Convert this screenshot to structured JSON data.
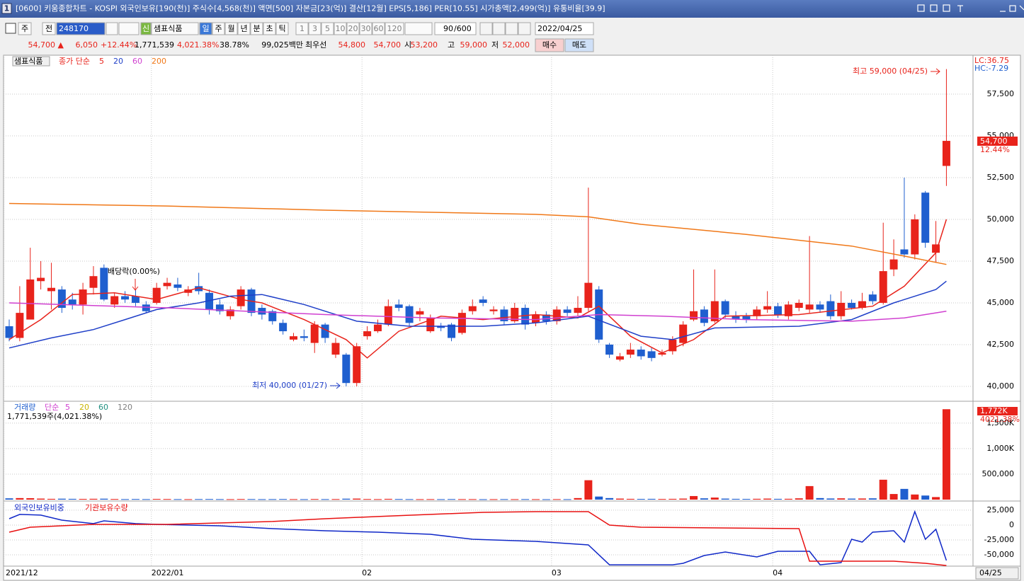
{
  "window": {
    "badge": "1",
    "title": "[0600] 키움종합차트 - KOSPI 외국인보유[190(천)] 주식수[4,568(천)] 액면[500] 자본금[23(억)] 결산[12월] EPS[5,186] PER[10.55] 시가총액[2,499(억)] 유통비율[39.9]"
  },
  "toolbar": {
    "period": "주",
    "scope": "전",
    "code": "248170",
    "badge": "신",
    "name": "샘표식품",
    "intervals": [
      "일",
      "주",
      "월",
      "년",
      "분",
      "초",
      "틱",
      "1",
      "3",
      "5",
      "10",
      "20",
      "30",
      "60",
      "120"
    ],
    "count": "90",
    "total": "/600",
    "date": "2022/04/25"
  },
  "quote": {
    "price": "54,700 ▲",
    "change": "6,050",
    "rate": "+12.44%",
    "volume": "1,771,539",
    "volume_rate": "4,021.38%",
    "turnover": "38.78%",
    "amount": "99,025백만",
    "best": "최우선",
    "ask": "54,800",
    "bid": "54,700",
    "open_label": "시",
    "open": "53,200",
    "high_label": "고",
    "high": "59,000",
    "low_label": "저",
    "low": "52,000",
    "buy": "매수",
    "sell": "매도"
  },
  "x_axis": {
    "labels": [
      {
        "label": "2021/12",
        "index": 0
      },
      {
        "label": "2022/01",
        "index": 14
      },
      {
        "label": "02",
        "index": 34
      },
      {
        "label": "03",
        "index": 52
      },
      {
        "label": "04",
        "index": 73
      }
    ],
    "last": "04/25"
  },
  "chart_data": [
    {
      "type": "candlestick",
      "title": "샘표식품",
      "legend_title": "종가 단순",
      "up_color": "#e8231b",
      "down_color": "#1f5fcf",
      "candles": {
        "open": [
          43600,
          42900,
          44000,
          46300,
          45700,
          45800,
          45200,
          44900,
          45900,
          47100,
          44900,
          45400,
          45400,
          44900,
          45000,
          46000,
          46100,
          45600,
          46000,
          45600,
          44900,
          44200,
          44800,
          45800,
          44700,
          44500,
          43800,
          42800,
          43000,
          42600,
          43700,
          41900,
          41900,
          40200,
          43000,
          43300,
          43700,
          44900,
          44800,
          44300,
          43300,
          43600,
          43700,
          43200,
          44500,
          45200,
          44500,
          44600,
          43900,
          44700,
          43800,
          44300,
          43900,
          44600,
          44400,
          44700,
          45800,
          42500,
          41600,
          41900,
          42200,
          42100,
          41900,
          42100,
          42600,
          44000,
          44600,
          43900,
          45100,
          44200,
          44200,
          44200,
          44600,
          44800,
          44200,
          44700,
          44600,
          44900,
          45100,
          44200,
          45000,
          44700,
          45500,
          45000,
          47000,
          48200,
          47900,
          51600,
          48000,
          53200
        ],
        "high": [
          44000,
          46000,
          48300,
          47500,
          47400,
          46000,
          45600,
          46200,
          47200,
          47300,
          45600,
          45700,
          45800,
          45100,
          46200,
          46500,
          46500,
          46000,
          46800,
          45800,
          45200,
          44800,
          46000,
          45900,
          44900,
          44600,
          44000,
          43200,
          43400,
          43900,
          43800,
          42900,
          42000,
          42600,
          43600,
          44000,
          45200,
          45200,
          44900,
          44700,
          44300,
          43800,
          43800,
          44600,
          45200,
          45400,
          44800,
          44800,
          45000,
          44900,
          44500,
          44500,
          44800,
          44800,
          45400,
          51900,
          46000,
          42600,
          42000,
          42600,
          42400,
          42300,
          42200,
          43000,
          43900,
          47000,
          44800,
          47000,
          45200,
          44500,
          44400,
          44800,
          45700,
          45000,
          45100,
          45200,
          49000,
          45100,
          45500,
          45700,
          45200,
          45600,
          45700,
          49800,
          48800,
          52500,
          50300,
          51700,
          49900,
          59000
        ],
        "low": [
          42700,
          42700,
          44000,
          45800,
          44600,
          44400,
          44600,
          44300,
          45500,
          45100,
          44700,
          45000,
          44800,
          44400,
          44900,
          45800,
          45700,
          45400,
          45500,
          44300,
          44300,
          44000,
          44600,
          44200,
          44000,
          43700,
          43100,
          42700,
          42700,
          42000,
          42600,
          41700,
          40000,
          40000,
          42800,
          43200,
          43600,
          44500,
          43600,
          43900,
          43200,
          43300,
          42700,
          43100,
          44300,
          44800,
          44300,
          43700,
          43800,
          43400,
          43600,
          43700,
          43700,
          44200,
          44200,
          44500,
          42600,
          41700,
          41500,
          41700,
          41600,
          41500,
          41800,
          41900,
          42400,
          43900,
          43600,
          43800,
          44100,
          43800,
          43800,
          44000,
          44400,
          44100,
          44000,
          44500,
          44400,
          44400,
          44000,
          44000,
          44600,
          44600,
          44900,
          44900,
          46600,
          47700,
          47600,
          48300,
          47400,
          52000
        ],
        "close": [
          42900,
          44400,
          46400,
          46500,
          45900,
          44700,
          44900,
          45800,
          46600,
          45200,
          45400,
          45200,
          45000,
          44500,
          45900,
          46200,
          45900,
          45800,
          45700,
          44600,
          44500,
          44600,
          45800,
          44400,
          44300,
          43900,
          43300,
          43000,
          42900,
          43700,
          42900,
          42600,
          40200,
          42400,
          43300,
          43700,
          44800,
          44700,
          43800,
          44500,
          44100,
          43500,
          42900,
          44400,
          44800,
          45000,
          44600,
          43900,
          44700,
          43700,
          44300,
          43900,
          44600,
          44400,
          44700,
          46200,
          42800,
          41900,
          41800,
          42200,
          41800,
          41700,
          42000,
          42800,
          43700,
          44500,
          43800,
          45100,
          44300,
          44000,
          44000,
          44600,
          44800,
          44300,
          44900,
          45000,
          44900,
          44600,
          44200,
          45000,
          44700,
          45100,
          45100,
          46900,
          47600,
          47900,
          50000,
          48600,
          48500,
          54700
        ]
      },
      "series": [
        {
          "name": "5",
          "color": "#e8231b",
          "x": [
            0,
            3,
            6,
            10,
            14,
            18,
            22,
            24,
            28,
            32,
            34,
            37,
            41,
            45,
            50,
            54,
            56,
            59,
            62,
            65,
            68,
            75,
            82,
            85,
            88,
            89
          ],
          "values": [
            42800,
            44000,
            45500,
            45600,
            45200,
            45900,
            45200,
            45000,
            44000,
            42800,
            41700,
            43300,
            44200,
            44000,
            44300,
            44100,
            44800,
            43000,
            42000,
            42800,
            44200,
            44300,
            44800,
            46000,
            48000,
            50000
          ]
        },
        {
          "name": "20",
          "color": "#1f3fc8",
          "x": [
            0,
            4,
            8,
            11,
            14,
            18,
            21,
            24,
            28,
            33,
            38,
            45,
            50,
            55,
            60,
            63,
            67,
            75,
            80,
            84,
            88,
            89
          ],
          "values": [
            42300,
            42900,
            43400,
            44000,
            44600,
            45000,
            45400,
            45500,
            44900,
            43900,
            43600,
            43600,
            43800,
            44200,
            43000,
            42800,
            43500,
            43600,
            44000,
            45000,
            45800,
            46300
          ]
        },
        {
          "name": "60",
          "color": "#d040d0",
          "x": [
            0,
            15,
            30,
            40,
            50,
            56,
            62,
            70,
            80,
            85,
            89
          ],
          "values": [
            45000,
            44700,
            44300,
            44100,
            44000,
            44300,
            44200,
            44000,
            43900,
            44100,
            44500
          ]
        },
        {
          "name": "200",
          "color": "#f07818",
          "x": [
            0,
            15,
            30,
            50,
            55,
            60,
            70,
            80,
            85,
            89
          ],
          "values": [
            50950,
            50800,
            50550,
            50300,
            50150,
            49700,
            49100,
            48400,
            47800,
            47300
          ]
        }
      ],
      "ylim": [
        39150,
        59830
      ],
      "yticks": [
        {
          "value": 40000,
          "label": "40,000"
        },
        {
          "value": 42500,
          "label": "42,500"
        },
        {
          "value": 45000,
          "label": "45,000"
        },
        {
          "value": 47500,
          "label": "47,500"
        },
        {
          "value": 50000,
          "label": "50,000"
        },
        {
          "value": 52500,
          "label": "52,500"
        },
        {
          "value": 55000,
          "label": "55,000"
        },
        {
          "value": 57500,
          "label": "57,500"
        }
      ],
      "high_note": "최고 59,000 (04/25)",
      "low_note": "최저 40,000 (01/27)",
      "event_note": "배당락(0.00%)",
      "lc": "LC:36.75",
      "hc": "HC:-7.29",
      "last_price": "54,700",
      "last_rate": "12.44%"
    },
    {
      "type": "bar",
      "title": "거래량",
      "legend_title": "단순",
      "legend": [
        {
          "text": "5",
          "color": "#d040d0"
        },
        {
          "text": "20",
          "color": "#c8b400"
        },
        {
          "text": "60",
          "color": "#209080"
        },
        {
          "text": "120",
          "color": "#808080"
        }
      ],
      "summary": "1,771,539주(4,021.38%)",
      "values": [
        25000,
        30000,
        28000,
        20000,
        15000,
        18000,
        15000,
        14000,
        16000,
        18000,
        12000,
        10000,
        12000,
        10000,
        14000,
        12000,
        10000,
        9000,
        11000,
        12000,
        10000,
        9000,
        12000,
        11000,
        9000,
        10000,
        12000,
        10000,
        9000,
        12000,
        10000,
        11000,
        18000,
        20000,
        12000,
        10000,
        15000,
        12000,
        10000,
        9000,
        10000,
        9000,
        11000,
        10000,
        10000,
        8000,
        9000,
        10000,
        9000,
        10000,
        9000,
        8000,
        10000,
        9000,
        30000,
        380000,
        60000,
        30000,
        20000,
        15000,
        14000,
        15000,
        13000,
        15000,
        20000,
        70000,
        25000,
        40000,
        20000,
        15000,
        14000,
        16000,
        20000,
        15000,
        16000,
        25000,
        265000,
        30000,
        22000,
        25000,
        20000,
        22000,
        25000,
        390000,
        110000,
        210000,
        100000,
        80000,
        50000,
        1771539
      ],
      "ylim": [
        0,
        1900000
      ],
      "yticks": [
        {
          "value": 500000,
          "label": "500,000"
        },
        {
          "value": 1000000,
          "label": "1,000K"
        },
        {
          "value": 1500000,
          "label": "1,500K"
        }
      ],
      "last_value": "1,772K",
      "last_rate": "4021.38%"
    },
    {
      "type": "line",
      "series": [
        {
          "name": "외국인보유비중",
          "color": "#1028c8",
          "x": [
            0,
            1,
            3,
            5,
            8,
            9,
            12,
            14,
            20,
            25,
            30,
            35,
            40,
            44,
            50,
            55,
            57,
            63,
            64,
            66,
            68,
            71,
            73,
            76,
            77,
            79,
            80,
            81,
            82,
            84,
            85,
            86,
            87,
            88,
            89
          ],
          "values": [
            10700,
            17900,
            16700,
            8300,
            2400,
            7100,
            2400,
            1200,
            -1200,
            -6000,
            -9500,
            -11900,
            -15500,
            -23800,
            -27400,
            -33300,
            -66700,
            -66700,
            -64300,
            -51200,
            -45200,
            -53600,
            -44000,
            -44000,
            -66700,
            -63100,
            -23800,
            -28600,
            -11900,
            -9500,
            -28600,
            22600,
            -23800,
            -7100,
            -59500
          ]
        },
        {
          "name": "기관보유수량",
          "color": "#e81010",
          "x": [
            0,
            2,
            8,
            15,
            25,
            30,
            35,
            40,
            45,
            50,
            55,
            57,
            60,
            75,
            76,
            84,
            87,
            89
          ],
          "values": [
            -11900,
            -3600,
            1200,
            1200,
            6000,
            10700,
            14300,
            17900,
            21400,
            22600,
            22600,
            0,
            -3600,
            -6000,
            -60700,
            -60700,
            -64300,
            -67900
          ]
        }
      ],
      "ylim": [
        -69000,
        38000
      ],
      "yticks": [
        {
          "value": 25000,
          "label": "25,000"
        },
        0,
        {
          "value": -25000,
          "label": "-25,000"
        },
        {
          "value": -50000,
          "label": "-50,000"
        }
      ]
    }
  ]
}
